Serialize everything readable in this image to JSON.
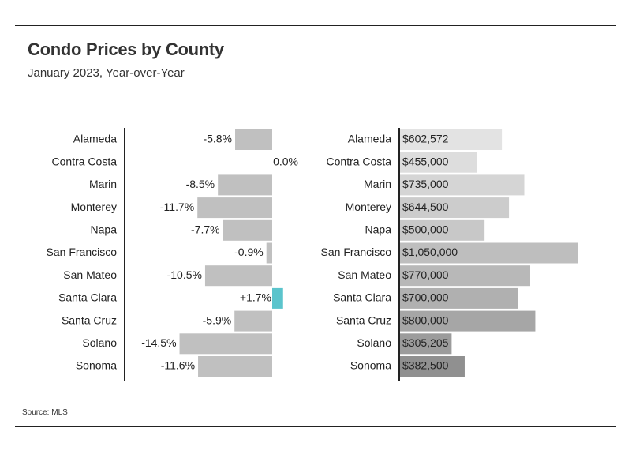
{
  "header": {
    "title": "Condo Prices by County",
    "subtitle": "January 2023, Year-over-Year"
  },
  "footer": {
    "source": "Source: MLS"
  },
  "chart_data": [
    {
      "type": "bar",
      "orientation": "horizontal",
      "categories": [
        "Alameda",
        "Contra Costa",
        "Marin",
        "Monterey",
        "Napa",
        "San Francisco",
        "San Mateo",
        "Santa Clara",
        "Santa Cruz",
        "Solano",
        "Sonoma"
      ],
      "values": [
        -5.8,
        0.0,
        -8.5,
        -11.7,
        -7.7,
        -0.9,
        -10.5,
        1.7,
        -5.9,
        -14.5,
        -11.6
      ],
      "value_labels": [
        "-5.8%",
        "0.0%",
        "-8.5%",
        "-11.7%",
        "-7.7%",
        "-0.9%",
        "-10.5%",
        "+1.7%",
        "-5.9%",
        "-14.5%",
        "-11.6%"
      ],
      "colors": {
        "negative": "#c0c0c0",
        "positive": "#5bc4cc",
        "axis": "#222222"
      }
    },
    {
      "type": "bar",
      "orientation": "horizontal",
      "categories": [
        "Alameda",
        "Contra Costa",
        "Marin",
        "Monterey",
        "Napa",
        "San Francisco",
        "San Mateo",
        "Santa Clara",
        "Santa Cruz",
        "Solano",
        "Sonoma"
      ],
      "values": [
        602572,
        455000,
        735000,
        644500,
        500000,
        1050000,
        770000,
        700000,
        800000,
        305205,
        382500
      ],
      "value_labels": [
        "$602,572",
        "$455,000",
        "$735,000",
        "$644,500",
        "$500,000",
        "$1,050,000",
        "$770,000",
        "$700,000",
        "$800,000",
        "$305,205",
        "$382,500"
      ],
      "colors": [
        "#e3e3e3",
        "#dddddd",
        "#d5d5d5",
        "#cccccc",
        "#c8c8c8",
        "#bebebe",
        "#b8b8b8",
        "#b0b0b0",
        "#a6a6a6",
        "#9c9c9c",
        "#909090"
      ]
    }
  ]
}
